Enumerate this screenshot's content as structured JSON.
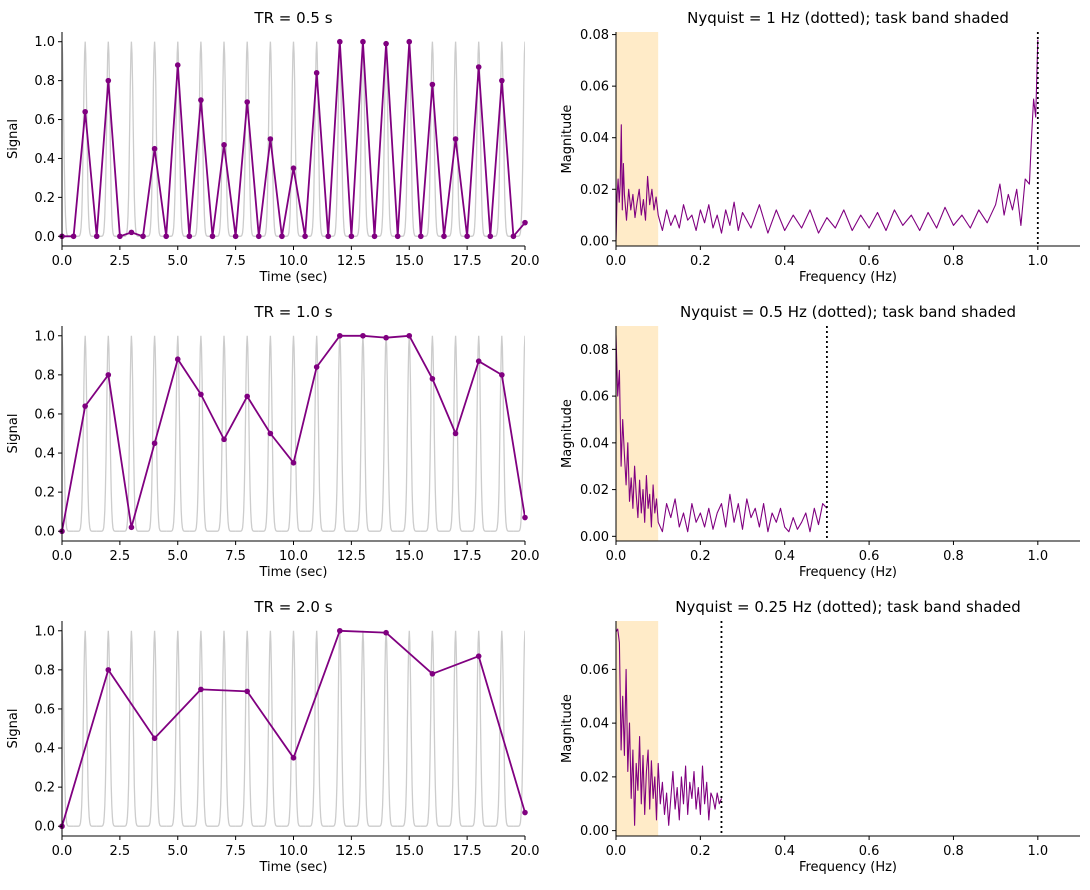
{
  "figure": {
    "background": "#ffffff"
  },
  "colors": {
    "signal": "#800080",
    "true_signal": "#cccccc",
    "task_band": "#ffebc8",
    "nyquist_line": "#000000"
  },
  "chart_data": [
    {
      "type": "line",
      "title": "TR = 0.5 s",
      "xlabel": "Time (sec)",
      "ylabel": "Signal",
      "xlim": [
        0,
        20
      ],
      "ylim": [
        -0.05,
        1.05
      ],
      "xticks": [
        0,
        2.5,
        5,
        7.5,
        10,
        12.5,
        15,
        17.5,
        20
      ],
      "xtick_labels": [
        "0.0",
        "2.5",
        "5.0",
        "7.5",
        "10.0",
        "12.5",
        "15.0",
        "17.5",
        "20.0"
      ],
      "yticks": [
        0,
        0.2,
        0.4,
        0.6,
        0.8,
        1.0
      ],
      "ytick_labels": [
        "0.0",
        "0.2",
        "0.4",
        "0.6",
        "0.8",
        "1.0"
      ],
      "spike_peaks": [
        0,
        1,
        2,
        3,
        4,
        5,
        6,
        7,
        8,
        9,
        10,
        11,
        12,
        13,
        14,
        15,
        16,
        17,
        18,
        19,
        20
      ],
      "series": [
        {
          "x": [
            0,
            0.5,
            1,
            1.5,
            2,
            2.5,
            3,
            3.5,
            4,
            4.5,
            5,
            5.5,
            6,
            6.5,
            7,
            7.5,
            8,
            8.5,
            9,
            9.5,
            10,
            10.5,
            11,
            11.5,
            12,
            12.5,
            13,
            13.5,
            14,
            14.5,
            15,
            15.5,
            16,
            16.5,
            17,
            17.5,
            18,
            18.5,
            19,
            19.5,
            20
          ],
          "y": [
            0,
            0,
            0.64,
            0,
            0.8,
            0,
            0.02,
            0,
            0.45,
            0,
            0.88,
            0,
            0.7,
            0,
            0.47,
            0,
            0.69,
            0,
            0.5,
            0,
            0.35,
            0,
            0.84,
            0,
            1.0,
            0,
            1.0,
            0,
            0.99,
            0,
            1.0,
            0,
            0.78,
            0,
            0.5,
            0,
            0.87,
            0,
            0.8,
            0,
            0.07
          ]
        }
      ]
    },
    {
      "type": "line",
      "title": "Nyquist = 1 Hz (dotted); task band shaded",
      "xlabel": "Frequency (Hz)",
      "ylabel": "Magnitude",
      "xlim": [
        0,
        1.1
      ],
      "ylim": [
        -0.002,
        0.081
      ],
      "xticks": [
        0,
        0.2,
        0.4,
        0.6,
        0.8,
        1.0
      ],
      "xtick_labels": [
        "0.0",
        "0.2",
        "0.4",
        "0.6",
        "0.8",
        "1.0"
      ],
      "yticks": [
        0,
        0.02,
        0.04,
        0.06,
        0.08
      ],
      "ytick_labels": [
        "0.00",
        "0.02",
        "0.04",
        "0.06",
        "0.08"
      ],
      "task_band": [
        0,
        0.1
      ],
      "nyquist": 1.0,
      "series": [
        {
          "x": [
            0,
            0.0025,
            0.005,
            0.0075,
            0.01,
            0.0125,
            0.015,
            0.0175,
            0.02,
            0.025,
            0.03,
            0.035,
            0.04,
            0.045,
            0.05,
            0.055,
            0.06,
            0.065,
            0.07,
            0.075,
            0.08,
            0.085,
            0.09,
            0.095,
            0.1,
            0.11,
            0.12,
            0.13,
            0.14,
            0.15,
            0.16,
            0.17,
            0.18,
            0.19,
            0.2,
            0.21,
            0.22,
            0.23,
            0.24,
            0.25,
            0.26,
            0.27,
            0.28,
            0.29,
            0.3,
            0.32,
            0.34,
            0.36,
            0.38,
            0.4,
            0.42,
            0.44,
            0.46,
            0.48,
            0.5,
            0.52,
            0.54,
            0.56,
            0.58,
            0.6,
            0.62,
            0.64,
            0.66,
            0.68,
            0.7,
            0.72,
            0.74,
            0.76,
            0.78,
            0.8,
            0.82,
            0.84,
            0.86,
            0.88,
            0.9,
            0.91,
            0.92,
            0.93,
            0.94,
            0.95,
            0.96,
            0.97,
            0.98,
            0.985,
            0.99,
            0.995,
            1.0
          ],
          "y": [
            0,
            0.018,
            0.024,
            0.015,
            0.022,
            0.045,
            0.012,
            0.03,
            0.018,
            0.008,
            0.02,
            0.012,
            0.018,
            0.009,
            0.015,
            0.02,
            0.01,
            0.016,
            0.008,
            0.025,
            0.014,
            0.02,
            0.012,
            0.017,
            0.01,
            0.004,
            0.012,
            0.006,
            0.01,
            0.005,
            0.014,
            0.008,
            0.01,
            0.004,
            0.012,
            0.007,
            0.014,
            0.005,
            0.01,
            0.003,
            0.012,
            0.006,
            0.015,
            0.004,
            0.011,
            0.005,
            0.014,
            0.003,
            0.012,
            0.004,
            0.01,
            0.005,
            0.012,
            0.003,
            0.009,
            0.005,
            0.012,
            0.004,
            0.01,
            0.005,
            0.011,
            0.004,
            0.012,
            0.006,
            0.01,
            0.004,
            0.011,
            0.005,
            0.013,
            0.006,
            0.01,
            0.005,
            0.012,
            0.007,
            0.014,
            0.022,
            0.01,
            0.018,
            0.012,
            0.02,
            0.006,
            0.024,
            0.022,
            0.04,
            0.055,
            0.048,
            0.078
          ]
        }
      ]
    },
    {
      "type": "line",
      "title": "TR = 1.0 s",
      "xlabel": "Time (sec)",
      "ylabel": "Signal",
      "xlim": [
        0,
        20
      ],
      "ylim": [
        -0.05,
        1.05
      ],
      "xticks": [
        0,
        2.5,
        5,
        7.5,
        10,
        12.5,
        15,
        17.5,
        20
      ],
      "xtick_labels": [
        "0.0",
        "2.5",
        "5.0",
        "7.5",
        "10.0",
        "12.5",
        "15.0",
        "17.5",
        "20.0"
      ],
      "yticks": [
        0,
        0.2,
        0.4,
        0.6,
        0.8,
        1.0
      ],
      "ytick_labels": [
        "0.0",
        "0.2",
        "0.4",
        "0.6",
        "0.8",
        "1.0"
      ],
      "spike_peaks": [
        0,
        1,
        2,
        3,
        4,
        5,
        6,
        7,
        8,
        9,
        10,
        11,
        12,
        13,
        14,
        15,
        16,
        17,
        18,
        19,
        20
      ],
      "series": [
        {
          "x": [
            0,
            1,
            2,
            3,
            4,
            5,
            6,
            7,
            8,
            9,
            10,
            11,
            12,
            13,
            14,
            15,
            16,
            17,
            18,
            19,
            20
          ],
          "y": [
            0,
            0.64,
            0.8,
            0.02,
            0.45,
            0.88,
            0.7,
            0.47,
            0.69,
            0.5,
            0.35,
            0.84,
            1.0,
            1.0,
            0.99,
            1.0,
            0.78,
            0.5,
            0.87,
            0.8,
            0.07
          ]
        }
      ]
    },
    {
      "type": "line",
      "title": "Nyquist = 0.5 Hz (dotted); task band shaded",
      "xlabel": "Frequency (Hz)",
      "ylabel": "Magnitude",
      "xlim": [
        0,
        1.1
      ],
      "ylim": [
        -0.002,
        0.09
      ],
      "xticks": [
        0,
        0.2,
        0.4,
        0.6,
        0.8,
        1.0
      ],
      "xtick_labels": [
        "0.0",
        "0.2",
        "0.4",
        "0.6",
        "0.8",
        "1.0"
      ],
      "yticks": [
        0,
        0.02,
        0.04,
        0.06,
        0.08
      ],
      "ytick_labels": [
        "0.00",
        "0.02",
        "0.04",
        "0.06",
        "0.08"
      ],
      "task_band": [
        0,
        0.1
      ],
      "nyquist": 0.5,
      "series": [
        {
          "x": [
            0,
            0.004,
            0.008,
            0.012,
            0.016,
            0.02,
            0.024,
            0.028,
            0.032,
            0.036,
            0.04,
            0.044,
            0.048,
            0.052,
            0.056,
            0.06,
            0.064,
            0.068,
            0.072,
            0.076,
            0.08,
            0.084,
            0.088,
            0.092,
            0.096,
            0.1,
            0.11,
            0.12,
            0.13,
            0.14,
            0.15,
            0.16,
            0.17,
            0.18,
            0.19,
            0.2,
            0.21,
            0.22,
            0.23,
            0.24,
            0.25,
            0.26,
            0.27,
            0.28,
            0.29,
            0.3,
            0.31,
            0.32,
            0.33,
            0.34,
            0.35,
            0.36,
            0.37,
            0.38,
            0.39,
            0.4,
            0.41,
            0.42,
            0.43,
            0.44,
            0.45,
            0.46,
            0.47,
            0.48,
            0.49,
            0.5
          ],
          "y": [
            0.086,
            0.06,
            0.071,
            0.03,
            0.05,
            0.035,
            0.022,
            0.04,
            0.015,
            0.025,
            0.012,
            0.03,
            0.018,
            0.008,
            0.024,
            0.01,
            0.02,
            0.006,
            0.026,
            0.012,
            0.018,
            0.004,
            0.022,
            0.01,
            0.016,
            0.006,
            0.002,
            0.014,
            0.008,
            0.016,
            0.004,
            0.01,
            0.002,
            0.014,
            0.006,
            0.01,
            0.004,
            0.012,
            0.003,
            0.01,
            0.014,
            0.004,
            0.018,
            0.006,
            0.014,
            0.003,
            0.016,
            0.008,
            0.012,
            0.004,
            0.014,
            0.002,
            0.01,
            0.006,
            0.012,
            0.004,
            0.002,
            0.008,
            0.003,
            0.006,
            0.01,
            0.002,
            0.012,
            0.005,
            0.014,
            0.012
          ]
        }
      ]
    },
    {
      "type": "line",
      "title": "TR = 2.0 s",
      "xlabel": "Time (sec)",
      "ylabel": "Signal",
      "xlim": [
        0,
        20
      ],
      "ylim": [
        -0.05,
        1.05
      ],
      "xticks": [
        0,
        2.5,
        5,
        7.5,
        10,
        12.5,
        15,
        17.5,
        20
      ],
      "xtick_labels": [
        "0.0",
        "2.5",
        "5.0",
        "7.5",
        "10.0",
        "12.5",
        "15.0",
        "17.5",
        "20.0"
      ],
      "yticks": [
        0,
        0.2,
        0.4,
        0.6,
        0.8,
        1.0
      ],
      "ytick_labels": [
        "0.0",
        "0.2",
        "0.4",
        "0.6",
        "0.8",
        "1.0"
      ],
      "spike_peaks": [
        0,
        1,
        2,
        3,
        4,
        5,
        6,
        7,
        8,
        9,
        10,
        11,
        12,
        13,
        14,
        15,
        16,
        17,
        18,
        19,
        20
      ],
      "series": [
        {
          "x": [
            0,
            2,
            4,
            6,
            8,
            10,
            12,
            14,
            16,
            18,
            20
          ],
          "y": [
            0,
            0.8,
            0.45,
            0.7,
            0.69,
            0.35,
            1.0,
            0.99,
            0.78,
            0.87,
            0.07
          ]
        }
      ]
    },
    {
      "type": "line",
      "title": "Nyquist = 0.25 Hz (dotted); task band shaded",
      "xlabel": "Frequency (Hz)",
      "ylabel": "Magnitude",
      "xlim": [
        0,
        1.1
      ],
      "ylim": [
        -0.002,
        0.078
      ],
      "xticks": [
        0,
        0.2,
        0.4,
        0.6,
        0.8,
        1.0
      ],
      "xtick_labels": [
        "0.0",
        "0.2",
        "0.4",
        "0.6",
        "0.8",
        "1.0"
      ],
      "yticks": [
        0,
        0.02,
        0.04,
        0.06
      ],
      "ytick_labels": [
        "0.00",
        "0.02",
        "0.04",
        "0.06"
      ],
      "task_band": [
        0,
        0.1
      ],
      "nyquist": 0.25,
      "series": [
        {
          "x": [
            0,
            0.004,
            0.008,
            0.012,
            0.016,
            0.02,
            0.024,
            0.028,
            0.032,
            0.036,
            0.04,
            0.044,
            0.048,
            0.052,
            0.056,
            0.06,
            0.064,
            0.068,
            0.072,
            0.076,
            0.08,
            0.084,
            0.088,
            0.092,
            0.096,
            0.1,
            0.105,
            0.11,
            0.115,
            0.12,
            0.125,
            0.13,
            0.135,
            0.14,
            0.145,
            0.15,
            0.155,
            0.16,
            0.165,
            0.17,
            0.175,
            0.18,
            0.185,
            0.19,
            0.195,
            0.2,
            0.205,
            0.21,
            0.215,
            0.22,
            0.225,
            0.23,
            0.235,
            0.24,
            0.245,
            0.25
          ],
          "y": [
            0.074,
            0.075,
            0.07,
            0.03,
            0.05,
            0.028,
            0.06,
            0.022,
            0.04,
            0.012,
            0.03,
            0.002,
            0.025,
            0.015,
            0.035,
            0.01,
            0.028,
            0.006,
            0.022,
            0.03,
            0.008,
            0.026,
            0.012,
            0.02,
            0.004,
            0.025,
            0.01,
            0.018,
            0.006,
            0.014,
            0.002,
            0.012,
            0.022,
            0.008,
            0.016,
            0.004,
            0.02,
            0.01,
            0.024,
            0.006,
            0.018,
            0.012,
            0.022,
            0.008,
            0.016,
            0.006,
            0.024,
            0.01,
            0.018,
            0.004,
            0.014,
            0.012,
            0.008,
            0.014,
            0.01,
            0.012
          ]
        }
      ]
    }
  ]
}
